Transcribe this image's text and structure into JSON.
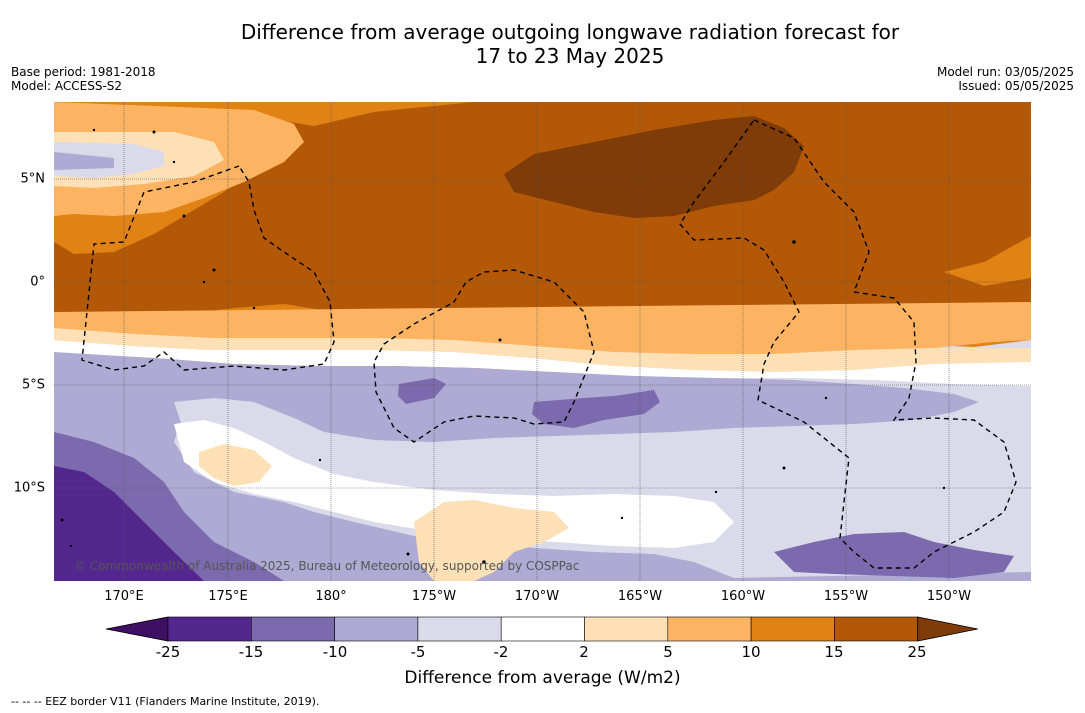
{
  "header": {
    "title_line1": "Difference from average outgoing longwave radiation forecast for",
    "title_line2": "17 to 23 May 2025",
    "base_period": "Base period: 1981-2018",
    "model": "Model: ACCESS-S2",
    "model_run": "Model run: 03/05/2025",
    "issued": "Issued: 05/05/2025"
  },
  "map": {
    "lat_labels": [
      "5°N",
      "0°",
      "5°S",
      "10°S"
    ],
    "lon_labels": [
      "170°E",
      "175°E",
      "180°",
      "175°W",
      "170°W",
      "165°W",
      "160°W",
      "155°W",
      "150°W"
    ],
    "copyright": "© Commonwealth of Australia 2025, Bureau of Meteorology, supported by COSPPac",
    "footnote": "--  --  -- EEZ border V11 (Flanders Marine Institute, 2019)."
  },
  "colorbar": {
    "title": "Difference from average (W/m2)",
    "ticks": [
      "-25",
      "-15",
      "-10",
      "-5",
      "-2",
      "2",
      "5",
      "10",
      "15",
      "25"
    ],
    "colors": [
      "#3f0f63",
      "#54278f",
      "#7b6aad",
      "#aeaad3",
      "#dadaeb",
      "#ffffff",
      "#fee0b6",
      "#fdb462",
      "#e08214",
      "#b35806",
      "#7f3b08"
    ]
  }
}
